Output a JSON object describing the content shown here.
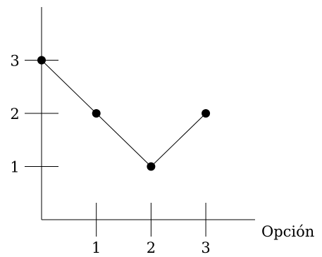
{
  "chart_data": {
    "type": "line",
    "title": "",
    "xlabel": "Opción",
    "ylabel": "",
    "x": [
      0,
      1,
      2,
      3
    ],
    "series": [
      {
        "values": [
          3,
          2,
          1,
          2
        ]
      }
    ],
    "x_ticks": [
      1,
      2,
      3
    ],
    "x_tick_labels": [
      "1",
      "2",
      "3"
    ],
    "y_ticks": [
      1,
      2,
      3
    ],
    "y_tick_labels": [
      "1",
      "2",
      "3"
    ],
    "xlim": [
      0,
      3.9
    ],
    "ylim": [
      0,
      4
    ],
    "grid": false,
    "legend": false,
    "colors": {
      "line": "#000000",
      "marker": "#000000"
    }
  }
}
